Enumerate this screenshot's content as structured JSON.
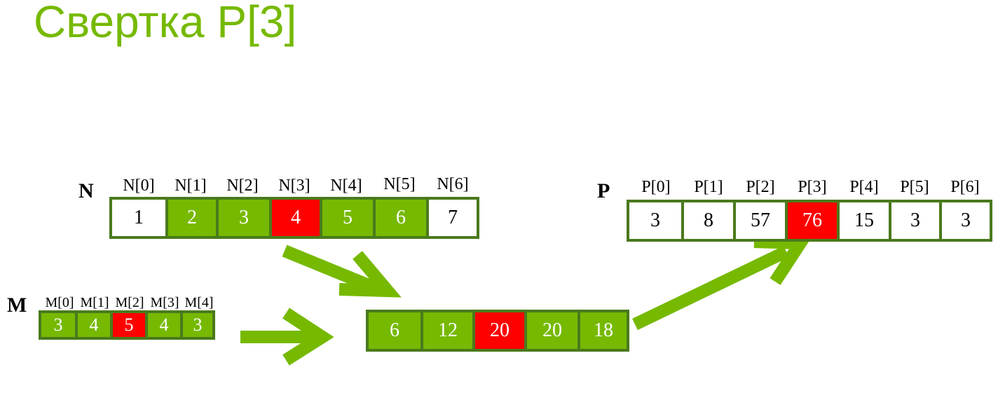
{
  "title": "Свертка P[3]",
  "colors": {
    "accent": "#76b900",
    "highlight": "#ff0000",
    "border": "#4a7a1c"
  },
  "N": {
    "label": "N",
    "indices": [
      "N[0]",
      "N[1]",
      "N[2]",
      "N[3]",
      "N[4]",
      "N[5]",
      "N[6]"
    ],
    "values": [
      "1",
      "2",
      "3",
      "4",
      "5",
      "6",
      "7"
    ],
    "states": [
      "white",
      "green",
      "green",
      "red",
      "green",
      "green",
      "white"
    ]
  },
  "M": {
    "label": "M",
    "indices": [
      "M[0]",
      "M[1]",
      "M[2]",
      "M[3]",
      "M[4]"
    ],
    "values": [
      "3",
      "4",
      "5",
      "4",
      "3"
    ],
    "states": [
      "green",
      "green",
      "red",
      "green",
      "green"
    ]
  },
  "products": {
    "values": [
      "6",
      "12",
      "20",
      "20",
      "18"
    ],
    "states": [
      "green",
      "green",
      "red",
      "green",
      "green"
    ]
  },
  "P": {
    "label": "P",
    "indices": [
      "P[0]",
      "P[1]",
      "P[2]",
      "P[3]",
      "P[4]",
      "P[5]",
      "P[6]"
    ],
    "values": [
      "3",
      "8",
      "57",
      "76",
      "15",
      "3",
      "3"
    ],
    "states": [
      "white",
      "white",
      "white",
      "red",
      "white",
      "white",
      "white"
    ]
  }
}
